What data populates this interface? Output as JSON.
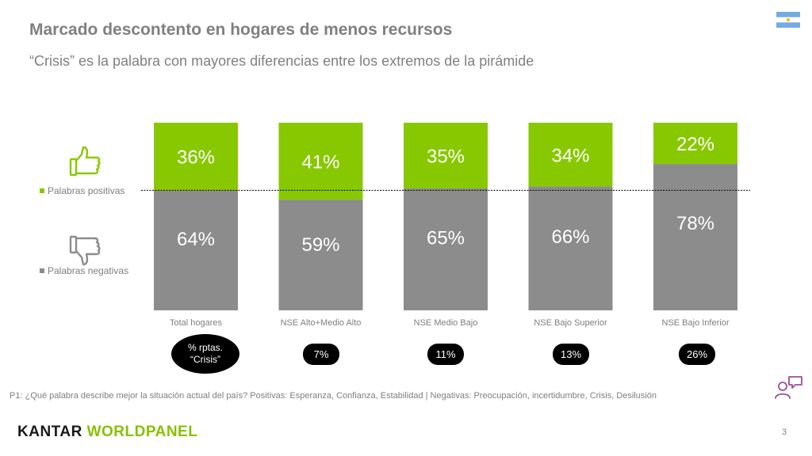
{
  "slide": {
    "title": "Marcado descontento en hogares de menos recursos",
    "subtitle": "“Crisis” es la palabra con mayores diferencias entre los extremos de la pirámide",
    "footnote": "P1: ¿Qué palabra describe mejor la situación actual del país? Positivas: Esperanza, Confianza, Estabilidad | Negativas: Preocupación, incertidumbre, Crisis, Desilusión",
    "page_number": "3",
    "logo": {
      "part1": "KANTAR ",
      "part2": "WORLDPANEL"
    },
    "flag_icon": "argentina-flag-icon",
    "chat_icon": "people-chat-icon"
  },
  "colors": {
    "positive": "#88c800",
    "negative": "#8c8c8c",
    "title": "#808080",
    "bubble": "#000000"
  },
  "chart_data": {
    "type": "bar",
    "stacked": true,
    "categories": [
      "Total hogares",
      "NSE Alto+Medio Alto",
      "NSE Medio Bajo",
      "NSE Bajo Superior",
      "NSE Bajo Inferior"
    ],
    "series": [
      {
        "name": "Palabras negativas",
        "values": [
          64,
          59,
          65,
          66,
          78
        ],
        "labels": [
          "64%",
          "59%",
          "65%",
          "66%",
          "78%"
        ]
      },
      {
        "name": "Palabras positivas",
        "values": [
          36,
          41,
          35,
          34,
          22
        ],
        "labels": [
          "36%",
          "41%",
          "35%",
          "34%",
          "22%"
        ]
      }
    ],
    "reference_line": 64,
    "ylim": [
      0,
      100
    ],
    "legend": [
      "Palabras positivas",
      "Palabras negativas"
    ],
    "legend_position": "left",
    "grid": false
  },
  "crisis_responses": {
    "label_line1": "% rptas.",
    "label_line2": "“Crisis”",
    "values": [
      "7%",
      "11%",
      "13%",
      "26%"
    ]
  }
}
